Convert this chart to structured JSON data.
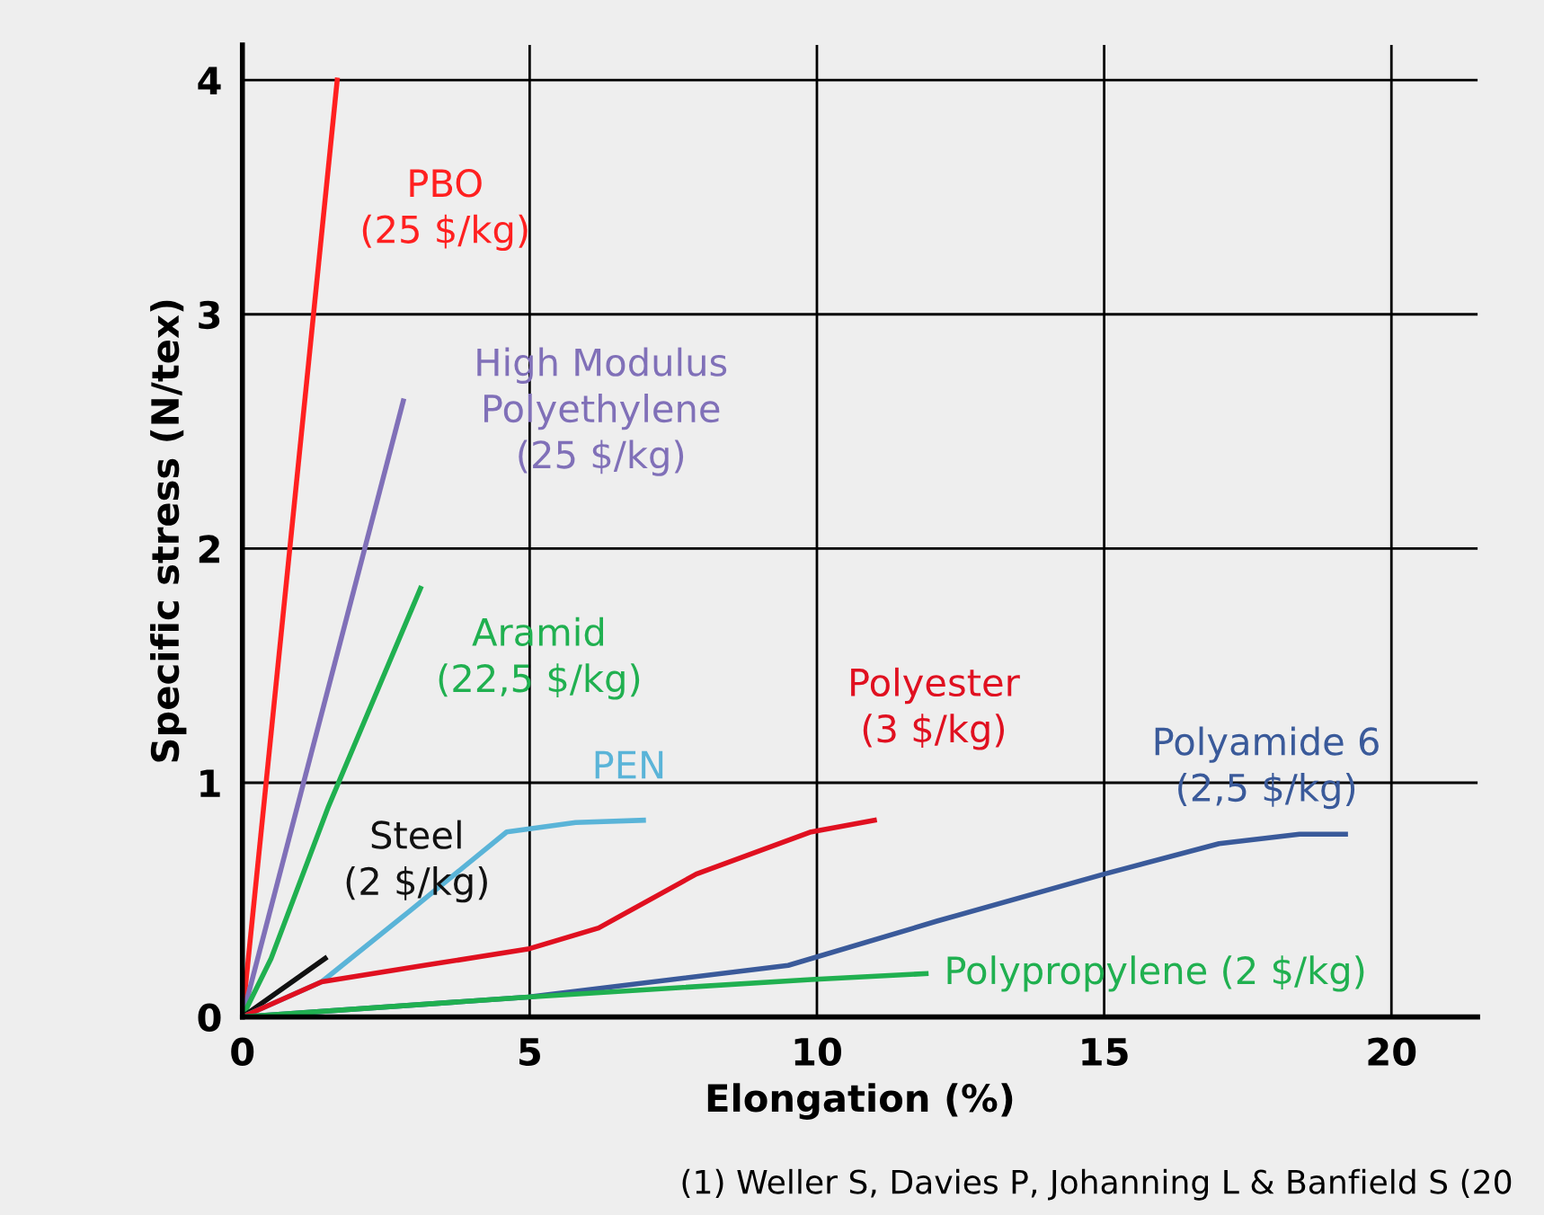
{
  "chart_data": {
    "type": "line",
    "xlabel": "Elongation (%)",
    "ylabel": "Specific stress (N/tex)",
    "xlim": [
      0,
      21.5
    ],
    "ylim": [
      0,
      4.15
    ],
    "xticks": [
      0,
      5,
      10,
      15,
      20
    ],
    "yticks": [
      0,
      1,
      2,
      3,
      4
    ],
    "grid": true,
    "legend": false,
    "marker": "none",
    "line_style": "solid",
    "series": [
      {
        "name": "PBO\n(25 $/kg)",
        "color": "#ff2020",
        "x": [
          0,
          1.65
        ],
        "values": [
          0,
          4.0
        ]
      },
      {
        "name": "High Modulus\nPolyethylene\n(25 $/kg)",
        "color": "#8070b8",
        "x": [
          0,
          2.8
        ],
        "values": [
          0,
          2.63
        ]
      },
      {
        "name": "Aramid\n(22,5 $/kg)",
        "color": "#20b050",
        "x": [
          0,
          0.5,
          1.5,
          3.1
        ],
        "values": [
          0,
          0.25,
          0.9,
          1.83
        ]
      },
      {
        "name": "Steel\n(2 $/kg)",
        "color": "#111111",
        "x": [
          0,
          1.44
        ],
        "values": [
          0,
          0.25
        ]
      },
      {
        "name": "PEN",
        "color": "#5ab4d8",
        "x": [
          0,
          1.38,
          2.9,
          4.6,
          5.8,
          6.98
        ],
        "values": [
          0,
          0.15,
          0.45,
          0.79,
          0.83,
          0.84
        ]
      },
      {
        "name": "Polyester\n(3 $/kg)",
        "color": "#e01020",
        "x": [
          0,
          1.38,
          3.16,
          4.97,
          6.2,
          7.9,
          9.9,
          11.0
        ],
        "values": [
          0,
          0.15,
          0.22,
          0.29,
          0.38,
          0.61,
          0.79,
          0.84
        ]
      },
      {
        "name": "Polyamide 6\n(2,5 $/kg)",
        "color": "#3a5a9a",
        "x": [
          0,
          4.97,
          9.5,
          12.1,
          15.0,
          17.0,
          18.4,
          19.2
        ],
        "values": [
          0,
          0.085,
          0.22,
          0.41,
          0.61,
          0.74,
          0.78,
          0.78
        ]
      },
      {
        "name": "Polypropylene (2 $/kg)",
        "color": "#20b050",
        "x": [
          0,
          4.97,
          9.9,
          11.9
        ],
        "values": [
          0,
          0.085,
          0.16,
          0.185
        ]
      }
    ],
    "annotations": [
      "(1) Weller S, Davies P, Johanning L & Banfield S (20"
    ]
  }
}
